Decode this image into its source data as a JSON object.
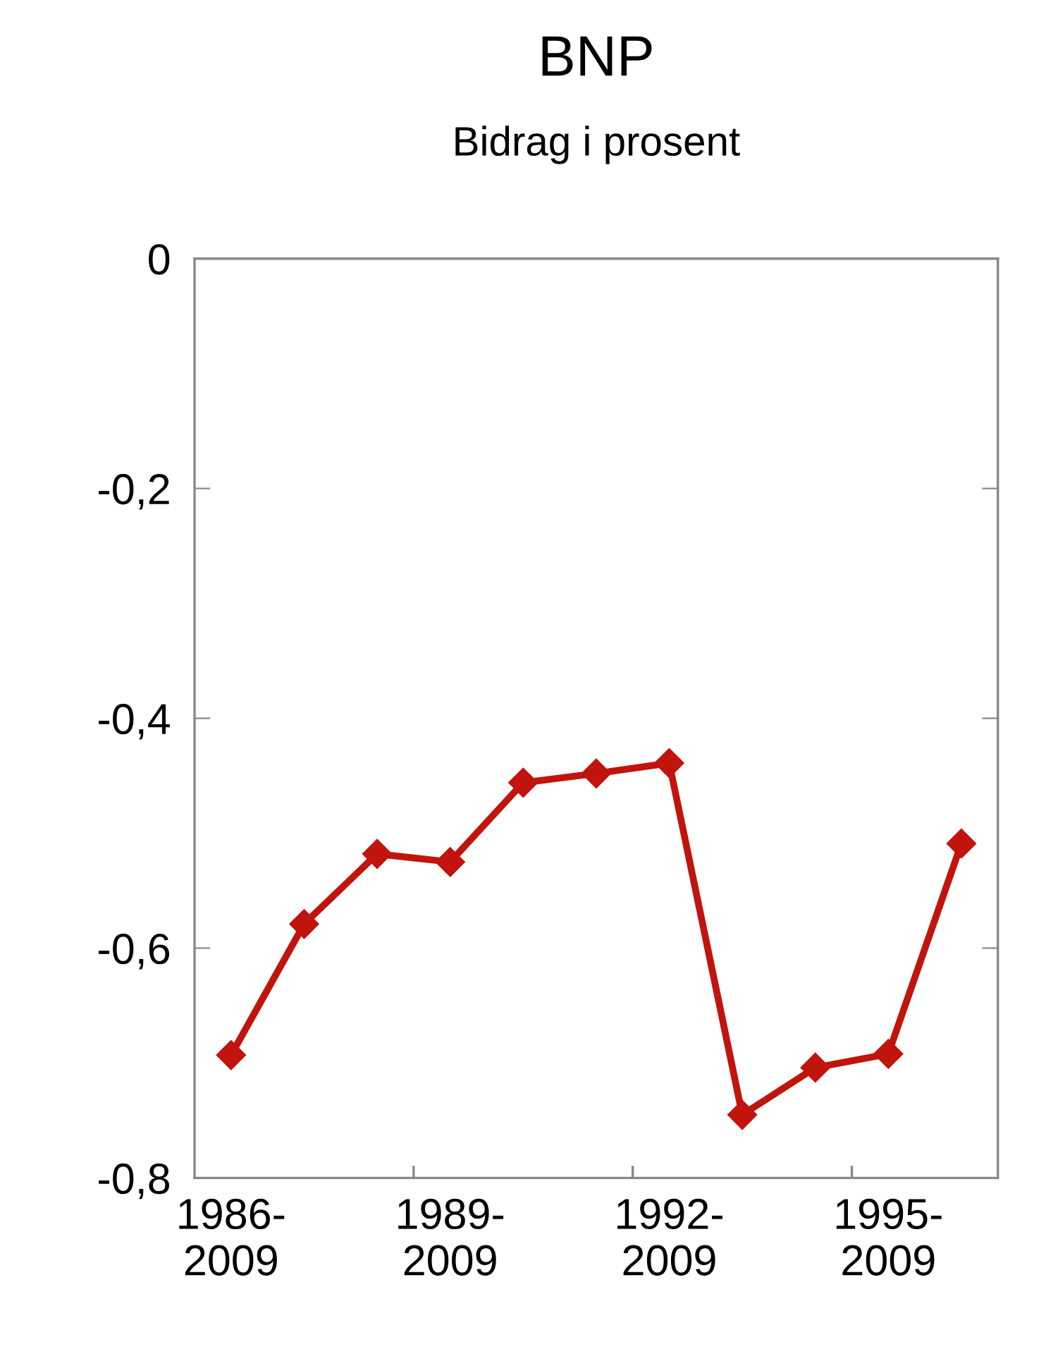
{
  "chart_data": {
    "type": "line",
    "title": "BNP",
    "subtitle": "Bidrag i prosent",
    "categories": [
      "1986-\n2009",
      null,
      null,
      "1989-\n2009",
      null,
      null,
      "1992-\n2009",
      null,
      null,
      "1995-\n2009",
      null
    ],
    "series": [
      {
        "color": "#c0140c",
        "values": [
          -0.693,
          -0.579,
          -0.518,
          -0.525,
          -0.456,
          -0.448,
          -0.439,
          -0.745,
          -0.704,
          -0.692,
          -0.509
        ]
      }
    ],
    "ylim": [
      -0.8,
      0
    ],
    "yticks": [
      {
        "value": -0.8,
        "label": "-0,8"
      },
      {
        "value": -0.6,
        "label": "-0,6"
      },
      {
        "value": -0.4,
        "label": "-0,4"
      },
      {
        "value": -0.2,
        "label": "-0,2"
      },
      0
    ],
    "marker": "diamond",
    "line_style": "solid",
    "grid": false,
    "legend": false
  }
}
